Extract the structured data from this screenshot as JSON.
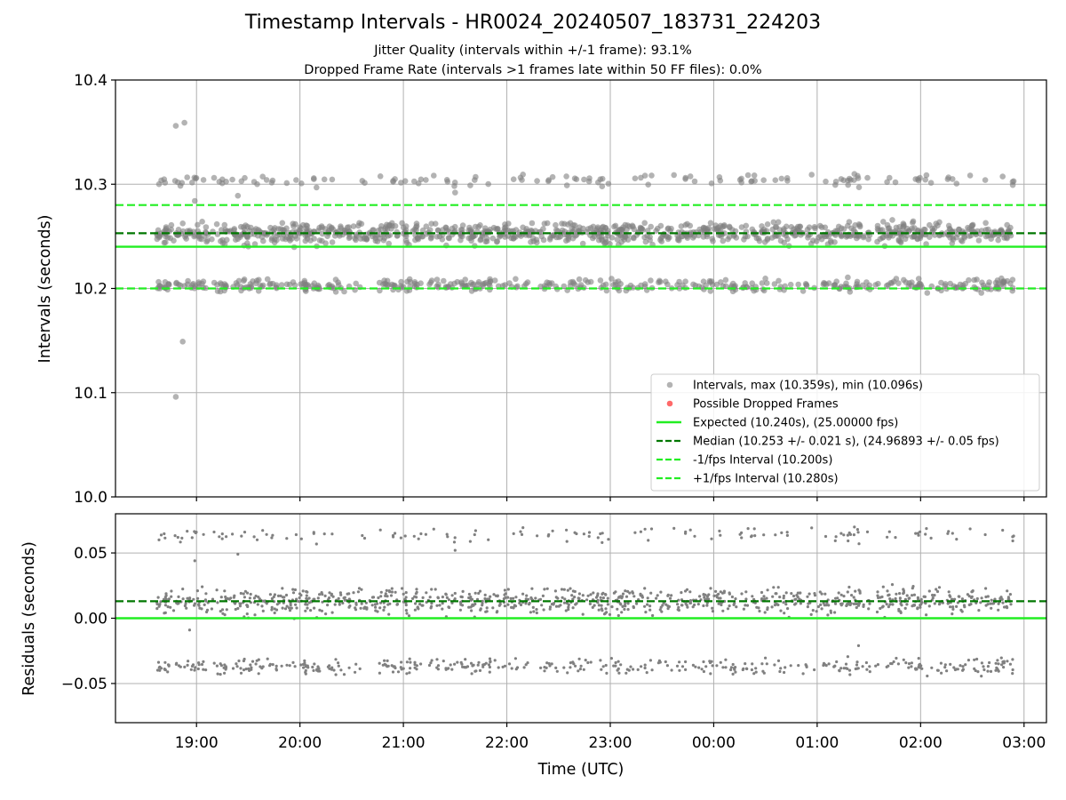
{
  "title": "Timestamp Intervals - HR0024_20240507_183731_224203",
  "subtitle_lines": [
    "Jitter Quality (intervals within +/-1 frame): 93.1%",
    "Dropped Frame Rate (intervals >1 frames late within 50 FF files): 0.0%"
  ],
  "colors": {
    "points": "#808080",
    "dropped": "#ff4444",
    "expected": "#22ee22",
    "median": "#007700",
    "bounds": "#22ee22"
  },
  "chart_data": [
    {
      "type": "scatter",
      "title": "Timestamp Intervals - HR0024_20240507_183731_224203",
      "xlabel": "",
      "ylabel": "Intervals (seconds)",
      "ylim": [
        10.0,
        10.4
      ],
      "yticks": [
        "10.0",
        "10.1",
        "10.2",
        "10.3",
        "10.4"
      ],
      "xlim": [
        "18:13",
        "03:13"
      ],
      "grid": true,
      "legend_placement": "lower-right",
      "legend": [
        "Intervals, max (10.359s), min (10.096s)",
        "Possible Dropped Frames",
        "Expected (10.240s), (25.00000 fps)",
        "Median (10.253 +/- 0.021 s), (24.96893 +/- 0.05 fps)",
        "-1/fps Interval (10.200s)",
        "+1/fps Interval (10.280s)"
      ],
      "reference_lines": {
        "expected": 10.24,
        "median": 10.253,
        "minus_1_fps": 10.2,
        "plus_1_fps": 10.28
      },
      "series": [
        {
          "name": "Intervals, max (10.359s), min (10.096s)",
          "x_range": [
            "18:37",
            "02:54"
          ],
          "bands": [
            {
              "center": 10.253,
              "spread": 0.007,
              "share": 0.64
            },
            {
              "center": 10.203,
              "spread": 0.004,
              "share": 0.27
            },
            {
              "center": 10.304,
              "spread": 0.004,
              "share": 0.09
            }
          ],
          "outliers": [
            {
              "x": "18:48",
              "y": 10.356
            },
            {
              "x": "18:53",
              "y": 10.359
            },
            {
              "x": "18:52",
              "y": 10.149
            },
            {
              "x": "18:48",
              "y": 10.096
            },
            {
              "x": "18:59",
              "y": 10.284
            },
            {
              "x": "19:24",
              "y": 10.289
            },
            {
              "x": "21:30",
              "y": 10.292
            }
          ]
        },
        {
          "name": "Possible Dropped Frames",
          "x": [],
          "y": []
        }
      ]
    },
    {
      "type": "scatter",
      "xlabel": "Time (UTC)",
      "ylabel": "Residuals (seconds)",
      "ylim": [
        -0.08,
        0.08
      ],
      "yticks": [
        "−0.05",
        "0.00",
        "0.05"
      ],
      "xticks": [
        "19:00",
        "20:00",
        "21:00",
        "22:00",
        "23:00",
        "00:00",
        "01:00",
        "02:00",
        "03:00"
      ],
      "xlim": [
        "18:13",
        "03:13"
      ],
      "grid": true,
      "reference_lines": {
        "zero": 0.0,
        "median_residual": 0.013
      },
      "series": [
        {
          "name": "",
          "x_range": [
            "18:37",
            "02:54"
          ],
          "bands": [
            {
              "center": 0.013,
              "spread": 0.007,
              "share": 0.64
            },
            {
              "center": -0.037,
              "spread": 0.004,
              "share": 0.27
            },
            {
              "center": 0.064,
              "spread": 0.004,
              "share": 0.09
            }
          ],
          "outliers": [
            {
              "x": "18:59",
              "y": 0.044
            },
            {
              "x": "19:24",
              "y": 0.049
            },
            {
              "x": "21:30",
              "y": 0.052
            },
            {
              "x": "18:56",
              "y": -0.009
            },
            {
              "x": "01:24",
              "y": -0.021
            }
          ]
        }
      ]
    }
  ]
}
